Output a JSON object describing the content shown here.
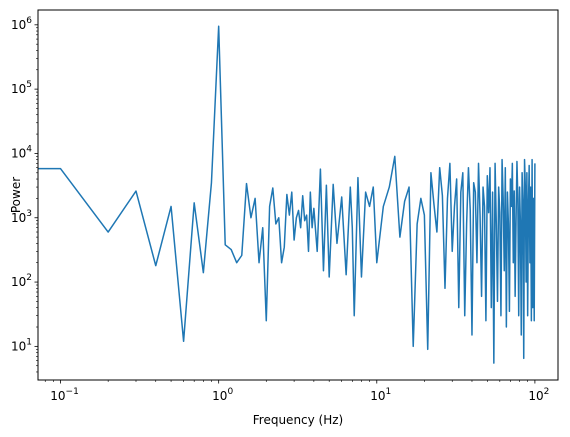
{
  "chart_data": {
    "type": "line",
    "title": "",
    "xlabel": "Frequency (Hz)",
    "ylabel": "Power",
    "xscale": "log",
    "yscale": "log",
    "xlim": [
      0.072,
      140
    ],
    "ylim": [
      3,
      1700000
    ],
    "grid": false,
    "legend": "none",
    "color": "#1f77b4",
    "x_ticks": [
      {
        "value": 0.1,
        "base": "10",
        "exp": "−1"
      },
      {
        "value": 1,
        "base": "10",
        "exp": "0"
      },
      {
        "value": 10,
        "base": "10",
        "exp": "1"
      },
      {
        "value": 100,
        "base": "10",
        "exp": "2"
      }
    ],
    "y_ticks": [
      {
        "value": 10,
        "base": "10",
        "exp": "1"
      },
      {
        "value": 100,
        "base": "10",
        "exp": "2"
      },
      {
        "value": 1000,
        "base": "10",
        "exp": "3"
      },
      {
        "value": 10000,
        "base": "10",
        "exp": "4"
      },
      {
        "value": 100000,
        "base": "10",
        "exp": "5"
      },
      {
        "value": 1000000,
        "base": "10",
        "exp": "6"
      }
    ],
    "series": [
      {
        "x": [
          0.05,
          0.1,
          0.2,
          0.3,
          0.4,
          0.5,
          0.6,
          0.7,
          0.8,
          0.9,
          1.0,
          1.1,
          1.2,
          1.3,
          1.4,
          1.5,
          1.6,
          1.7,
          1.8,
          1.9,
          2.0,
          2.1,
          2.2,
          2.3,
          2.4,
          2.5,
          2.6,
          2.7,
          2.8,
          2.9,
          3.0,
          3.1,
          3.2,
          3.3,
          3.4,
          3.5,
          3.6,
          3.7,
          3.8,
          3.9,
          4.0,
          4.2,
          4.4,
          4.6,
          4.8,
          5.0,
          5.3,
          5.6,
          6.0,
          6.4,
          6.8,
          7.0,
          7.2,
          7.6,
          8.0,
          8.5,
          9.0,
          9.5,
          10,
          11,
          12,
          13,
          14,
          15,
          16,
          17,
          18,
          19,
          20,
          21,
          22,
          23,
          24,
          25,
          26,
          27,
          28,
          29,
          30,
          31,
          32,
          33,
          34,
          35,
          36,
          37,
          38,
          39,
          40,
          41,
          42,
          43,
          44,
          45,
          46,
          47,
          48,
          49,
          50,
          51,
          52,
          53,
          54,
          55,
          56,
          57,
          58,
          59,
          60,
          61,
          62,
          63,
          64,
          65,
          66,
          67,
          68,
          69,
          70,
          71,
          72,
          73,
          74,
          75,
          76,
          77,
          78,
          79,
          80,
          81,
          82,
          83,
          84,
          85,
          86,
          87,
          88,
          89,
          90,
          91,
          92,
          93,
          94,
          95,
          96,
          97,
          98,
          99,
          100
        ],
        "y": [
          5800,
          5800,
          600,
          2600,
          180,
          1500,
          12,
          1700,
          140,
          3500,
          950000,
          380,
          320,
          200,
          260,
          3400,
          1000,
          2000,
          200,
          700,
          25,
          1500,
          2900,
          800,
          1000,
          200,
          350,
          2300,
          1100,
          2500,
          450,
          1000,
          1300,
          700,
          2200,
          900,
          1100,
          300,
          2500,
          700,
          1400,
          300,
          5700,
          150,
          3200,
          120,
          3300,
          400,
          2100,
          130,
          3000,
          700,
          30,
          4200,
          120,
          2500,
          1500,
          3000,
          200,
          1500,
          3000,
          9000,
          500,
          1800,
          3000,
          10,
          800,
          2000,
          1100,
          9,
          5000,
          1600,
          600,
          6000,
          2200,
          80,
          2000,
          7000,
          300,
          1500,
          4000,
          40,
          2500,
          5000,
          30,
          800,
          6000,
          1300,
          15,
          3500,
          2500,
          200,
          7000,
          1100,
          60,
          3000,
          1500,
          25,
          4500,
          1200,
          6000,
          40,
          2500,
          5.5,
          7000,
          800,
          50,
          3000,
          1200,
          30,
          8000,
          2000,
          150,
          6000,
          20,
          2500,
          800,
          35,
          4000,
          1500,
          7000,
          200,
          2600,
          60,
          900,
          7500,
          2000,
          30,
          3000,
          800,
          15,
          5000,
          1800,
          6.5,
          8000,
          3000,
          100,
          5000,
          30,
          1500,
          6500,
          200,
          3000,
          25,
          8000,
          40,
          2000,
          25,
          7000
        ]
      }
    ]
  }
}
